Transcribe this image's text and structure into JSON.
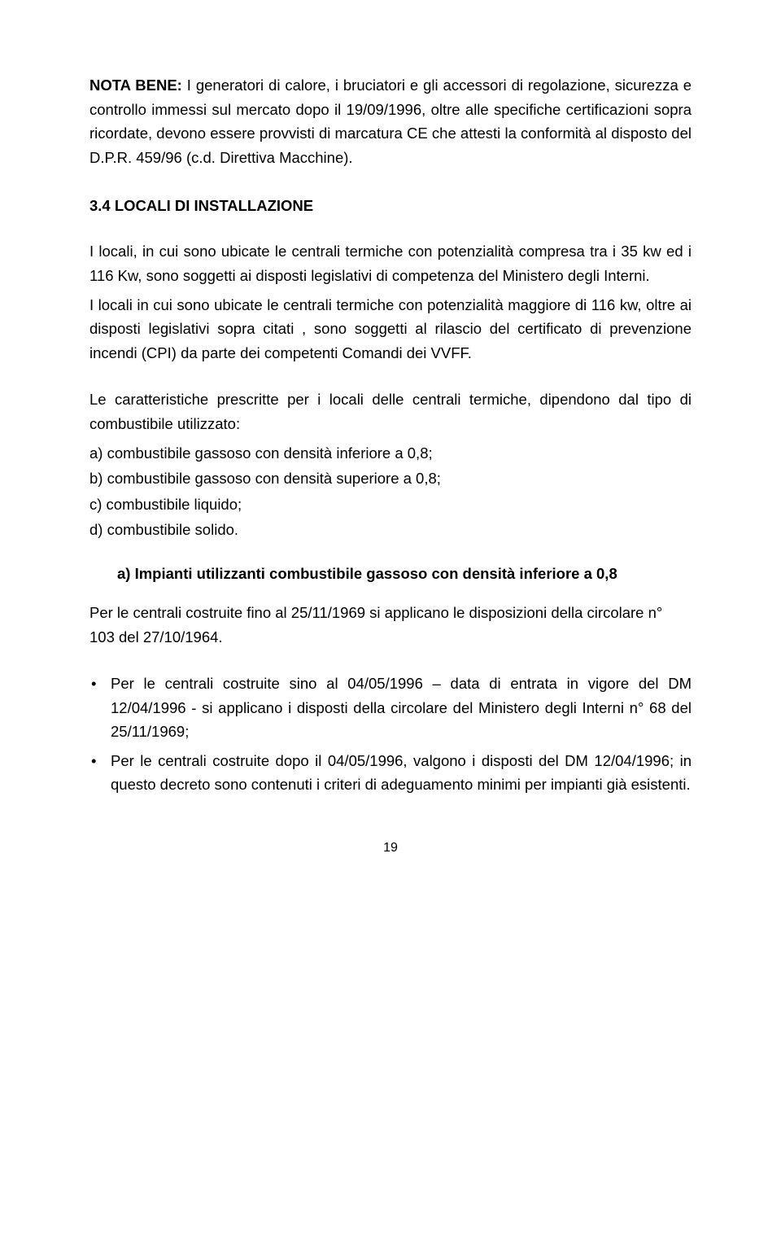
{
  "nota": {
    "label": "NOTA BENE:",
    "text": " I generatori di calore, i bruciatori e gli accessori di regolazione, sicurezza e controllo immessi sul mercato dopo il 19/09/1996, oltre alle specifiche certificazioni sopra ricordate, devono essere provvisti di marcatura CE che attesti la conformità al disposto del D.P.R. 459/96 (c.d. Direttiva Macchine)."
  },
  "section_heading": "3.4  LOCALI DI INSTALLAZIONE",
  "para1": "I locali, in cui sono ubicate le centrali termiche con potenzialità compresa tra i 35 kw ed i 116 Kw, sono soggetti ai disposti legislativi di competenza del Ministero degli Interni.",
  "para2": "I locali in cui sono ubicate le centrali termiche con potenzialità maggiore di 116 kw, oltre ai disposti legislativi sopra citati , sono soggetti al rilascio del certificato di prevenzione incendi (CPI) da parte dei competenti Comandi dei VVFF.",
  "para3": "Le caratteristiche prescritte per i locali delle centrali termiche, dipendono dal tipo di combustibile utilizzato:",
  "list": {
    "a": "a)  combustibile gassoso con densità inferiore a 0,8;",
    "b": "b)  combustibile gassoso con densità superiore a 0,8;",
    "c": "c)  combustibile liquido;",
    "d": "d)  combustibile solido."
  },
  "sub_a_heading": "a)  Impianti utilizzanti combustibile gassoso con densità inferiore a 0,8",
  "sub_a_intro": "Per le centrali costruite fino al 25/11/1969 si applicano le disposizioni della circolare n° 103 del 27/10/1964.",
  "bullets": {
    "b1": "Per le centrali costruite sino al 04/05/1996 – data di entrata in vigore del DM 12/04/1996  - si applicano i disposti della circolare del Ministero degli Interni n° 68 del 25/11/1969;",
    "b2": "Per le centrali costruite dopo il 04/05/1996, valgono i disposti del DM 12/04/1996; in questo decreto sono contenuti i criteri di adeguamento minimi per impianti già esistenti."
  },
  "page_number": "19"
}
